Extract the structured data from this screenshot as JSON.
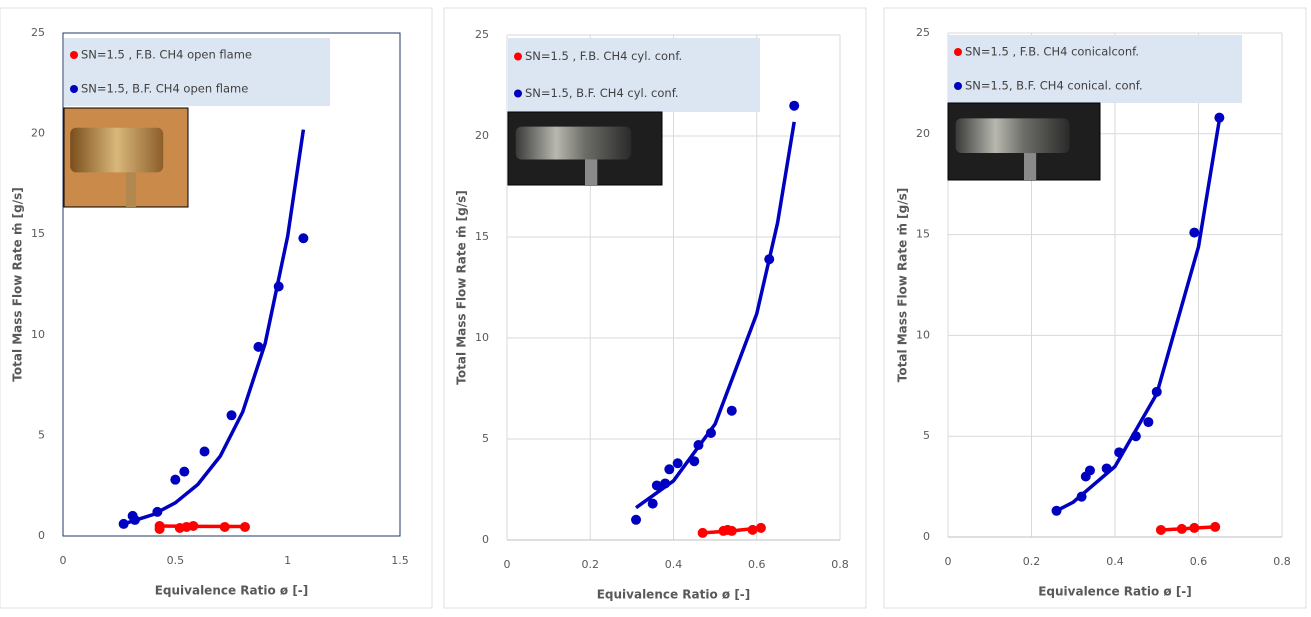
{
  "chart_data": [
    {
      "type": "scatter",
      "xlabel": "Equivalence Ratio ø [-]",
      "ylabel": "Total Mass Flow Rate ṁ [g/s]",
      "xlim": [
        0,
        1.5
      ],
      "xticks": [
        0,
        0.5,
        1,
        1.5
      ],
      "ylim": [
        0,
        25
      ],
      "yticks": [
        0,
        5,
        10,
        15,
        20,
        25
      ],
      "grid": false,
      "frame": true,
      "legend": "upper left",
      "series": [
        {
          "name": "SN=1.5 , F.B. CH4 open flame",
          "color": "#ff0000",
          "x": [
            0.43,
            0.43,
            0.52,
            0.55,
            0.58,
            0.72,
            0.81
          ],
          "values": [
            0.35,
            0.5,
            0.4,
            0.45,
            0.5,
            0.45,
            0.45
          ],
          "trend": {
            "x": [
              0.43,
              0.6,
              0.81
            ],
            "values": [
              0.5,
              0.48,
              0.47
            ]
          }
        },
        {
          "name": "SN=1.5, B.F. CH4 open flame",
          "color": "#0000c0",
          "x": [
            0.27,
            0.31,
            0.32,
            0.42,
            0.5,
            0.54,
            0.63,
            0.75,
            0.87,
            0.96,
            1.07
          ],
          "values": [
            0.6,
            1.0,
            0.8,
            1.2,
            2.8,
            3.2,
            4.2,
            6.0,
            9.4,
            12.4,
            14.8
          ],
          "trend": {
            "x": [
              0.27,
              0.4,
              0.5,
              0.6,
              0.7,
              0.8,
              0.9,
              1.0,
              1.07
            ],
            "values": [
              0.6,
              1.06,
              1.65,
              2.56,
              3.97,
              6.17,
              9.58,
              14.9,
              20.2
            ]
          }
        }
      ]
    },
    {
      "type": "scatter",
      "xlabel": "Equivalence Ratio ø [-]",
      "ylabel": "Total Mass Flow Rate ṁ [g/s]",
      "xlim": [
        0,
        0.8
      ],
      "xticks": [
        0,
        0.2,
        0.4,
        0.6,
        0.8
      ],
      "ylim": [
        0,
        25
      ],
      "yticks": [
        0,
        5,
        10,
        15,
        20,
        25
      ],
      "grid": true,
      "frame": false,
      "legend": "upper left",
      "series": [
        {
          "name": "SN=1.5 , F.B. CH4 cyl. conf.",
          "color": "#ff0000",
          "x": [
            0.47,
            0.52,
            0.53,
            0.54,
            0.59,
            0.61
          ],
          "values": [
            0.35,
            0.45,
            0.5,
            0.45,
            0.5,
            0.6
          ],
          "trend": {
            "x": [
              0.47,
              0.54,
              0.61
            ],
            "values": [
              0.35,
              0.45,
              0.6
            ]
          }
        },
        {
          "name": "SN=1.5, B.F. CH4 cyl. conf.",
          "color": "#0000c0",
          "x": [
            0.31,
            0.35,
            0.36,
            0.38,
            0.39,
            0.41,
            0.45,
            0.46,
            0.49,
            0.54,
            0.63,
            0.69
          ],
          "values": [
            1.0,
            1.8,
            2.7,
            2.8,
            3.5,
            3.8,
            3.9,
            4.7,
            5.3,
            6.4,
            13.9,
            21.5
          ],
          "trend": {
            "x": [
              0.31,
              0.4,
              0.5,
              0.6,
              0.65,
              0.69
            ],
            "values": [
              1.6,
              2.93,
              5.74,
              11.2,
              15.7,
              20.7
            ]
          }
        }
      ]
    },
    {
      "type": "scatter",
      "xlabel": "Equivalence Ratio ø [-]",
      "ylabel": "Total Mass Flow Rate ṁ [g/s]",
      "xlim": [
        0,
        0.8
      ],
      "xticks": [
        0,
        0.2,
        0.4,
        0.6,
        0.8
      ],
      "ylim": [
        0,
        25
      ],
      "yticks": [
        0,
        5,
        10,
        15,
        20,
        25
      ],
      "grid": true,
      "frame": false,
      "legend": "upper left",
      "series": [
        {
          "name": "SN=1.5 , F.B. CH4 conicalconf.",
          "color": "#ff0000",
          "x": [
            0.51,
            0.56,
            0.59,
            0.64
          ],
          "values": [
            0.35,
            0.4,
            0.45,
            0.5
          ],
          "trend": {
            "x": [
              0.51,
              0.64
            ],
            "values": [
              0.35,
              0.5
            ]
          }
        },
        {
          "name": "SN=1.5, B.F. CH4 conical. conf.",
          "color": "#0000c0",
          "x": [
            0.26,
            0.32,
            0.33,
            0.34,
            0.38,
            0.41,
            0.45,
            0.48,
            0.5,
            0.59,
            0.65
          ],
          "values": [
            1.3,
            2.0,
            3.0,
            3.3,
            3.4,
            4.2,
            5.0,
            5.7,
            7.2,
            15.1,
            20.8
          ],
          "trend": {
            "x": [
              0.26,
              0.3,
              0.4,
              0.5,
              0.6,
              0.65
            ],
            "values": [
              1.3,
              1.73,
              3.5,
              7.1,
              14.4,
              20.7
            ]
          }
        }
      ]
    }
  ]
}
